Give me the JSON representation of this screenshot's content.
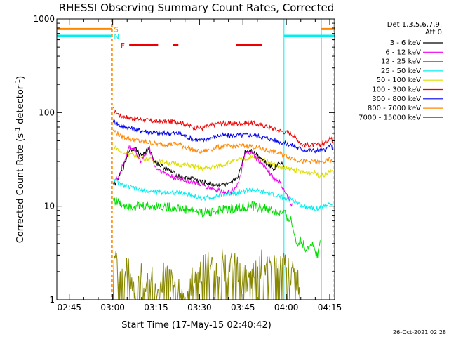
{
  "chart_data": {
    "type": "line",
    "title": "RHESSI Observing Summary Count Rates, Corrected",
    "xlabel": "Start Time (17-May-15 02:40:42)",
    "ylabel": "Corrected Count Rate (s⁻¹ detector⁻¹)",
    "ylabel_parts": [
      "Corrected Count Rate (s",
      "-1",
      " detector",
      "-1",
      ")"
    ],
    "x_unit": "minutes after 02:40:42",
    "xlim": [
      0,
      96
    ],
    "ylim": [
      1,
      1000
    ],
    "yscale": "log",
    "x_ticks": [
      {
        "label": "02:45",
        "x": 4.3
      },
      {
        "label": "03:00",
        "x": 19.3
      },
      {
        "label": "03:15",
        "x": 34.3
      },
      {
        "label": "03:30",
        "x": 49.3
      },
      {
        "label": "03:45",
        "x": 64.3
      },
      {
        "label": "04:00",
        "x": 79.3
      },
      {
        "label": "04:15",
        "x": 94.3
      }
    ],
    "y_ticks": [
      {
        "label": "1",
        "y": 1
      },
      {
        "label": "10",
        "y": 10
      },
      {
        "label": "100",
        "y": 100
      },
      {
        "label": "1000",
        "y": 1000
      }
    ],
    "legend": {
      "placement": "right",
      "header": [
        "Det 1,3,5,6,7,9,",
        "Att 0"
      ],
      "entries": [
        {
          "label": "3 - 6 keV",
          "color": "#000000"
        },
        {
          "label": "6 - 12 keV",
          "color": "#ee00ee"
        },
        {
          "label": "12 - 25 keV",
          "color": "#00dd00"
        },
        {
          "label": "25 - 50 keV",
          "color": "#00eeee"
        },
        {
          "label": "50 - 100 keV",
          "color": "#dddd00"
        },
        {
          "label": "100 - 300 keV",
          "color": "#ee0000"
        },
        {
          "label": "300 - 800 keV",
          "color": "#0000ee"
        },
        {
          "label": "800 - 7000 keV",
          "color": "#ff8800"
        },
        {
          "label": "7000 - 15000 keV",
          "color": "#888800"
        }
      ]
    },
    "flags": {
      "S": {
        "label": "S",
        "color": "#ff8800",
        "y": 780,
        "segments": [
          [
            0,
            19
          ],
          [
            91.5,
            96
          ]
        ]
      },
      "N": {
        "label": "N",
        "color": "#00eeee",
        "y": 660,
        "segments": [
          [
            0,
            19
          ],
          [
            78.5,
            96
          ]
        ]
      },
      "F": {
        "label": "F",
        "color": "#ee0000",
        "y": 530,
        "segments": [
          [
            25,
            35
          ],
          [
            40,
            42
          ],
          [
            62,
            71
          ]
        ]
      }
    },
    "vertical_markers": [
      {
        "x": 0,
        "color": "#00eeee",
        "style": "solid"
      },
      {
        "x": 18.8,
        "color": "#00eeee",
        "style": "dashed"
      },
      {
        "x": 19.2,
        "color": "#ff8800",
        "style": "dashed"
      },
      {
        "x": 78.5,
        "color": "#00eeee",
        "style": "solid"
      },
      {
        "x": 91.4,
        "color": "#ff8800",
        "style": "solid"
      },
      {
        "x": 95.5,
        "color": "#00eeee",
        "style": "dashed"
      }
    ],
    "series": [
      {
        "name": "100 - 300 keV",
        "color": "#ee0000",
        "x": [
          19.5,
          22,
          28,
          35,
          42,
          47,
          50,
          56,
          62,
          67,
          72,
          76,
          79,
          81,
          85,
          89.5,
          90.5,
          93,
          94.3,
          95.3
        ],
        "y": [
          108,
          92,
          85,
          80,
          80,
          70,
          68,
          77,
          76,
          78,
          72,
          65,
          62,
          60,
          45,
          45,
          45,
          48,
          55,
          50
        ]
      },
      {
        "name": "300 - 800 keV",
        "color": "#0000ee",
        "x": [
          19.5,
          22,
          28,
          35,
          42,
          47,
          50,
          56,
          62,
          67,
          72,
          76,
          79,
          81,
          85,
          89.5,
          90.5,
          93,
          94.3,
          95.3
        ],
        "y": [
          82,
          72,
          65,
          60,
          60,
          52,
          50,
          57,
          57,
          58,
          54,
          50,
          47,
          45,
          40,
          39,
          39,
          40,
          45,
          42
        ]
      },
      {
        "name": "800 - 7000 keV",
        "color": "#ff8800",
        "x": [
          19.5,
          22,
          28,
          35,
          42,
          47,
          50,
          56,
          62,
          67,
          72,
          76,
          79,
          81,
          85,
          89.5,
          90.5,
          93,
          94.3,
          95.3
        ],
        "y": [
          65,
          56,
          50,
          46,
          46,
          40,
          38,
          43,
          44,
          44,
          40,
          37,
          35,
          33,
          30,
          30,
          29,
          30,
          32,
          30
        ]
      },
      {
        "name": "50 - 100 keV",
        "color": "#dddd00",
        "x": [
          19.5,
          22,
          28,
          35,
          42,
          47,
          50,
          56,
          62,
          67,
          72,
          76,
          79,
          81,
          85,
          89.5,
          90.5,
          93,
          94.3,
          95.3
        ],
        "y": [
          45,
          38,
          34,
          30,
          28,
          27,
          25,
          27,
          31,
          33,
          31,
          27,
          25,
          25,
          23,
          23,
          21,
          22,
          24,
          23
        ]
      },
      {
        "name": "3 - 6 keV",
        "color": "#000000",
        "x": [
          19.5,
          21,
          23,
          25,
          27,
          29,
          32,
          34,
          36,
          38,
          41,
          44,
          47,
          50,
          55,
          60,
          63,
          65,
          67,
          70,
          73,
          75,
          77,
          78.5
        ],
        "y": [
          17,
          19,
          26,
          40,
          42,
          35,
          40,
          30,
          27,
          25,
          22,
          20,
          20,
          18,
          17,
          17,
          22,
          38,
          40,
          34,
          28,
          25,
          30,
          27
        ]
      },
      {
        "name": "6 - 12 keV",
        "color": "#ee00ee",
        "x": [
          19.5,
          21,
          23,
          25,
          27,
          29,
          32,
          34,
          36,
          38,
          41,
          44,
          47,
          50,
          55,
          60,
          63,
          65,
          67,
          70,
          73,
          75,
          77,
          80,
          81.5
        ],
        "y": [
          18,
          20,
          28,
          43,
          40,
          30,
          42,
          26,
          24,
          22,
          20,
          19,
          18,
          17,
          15,
          14,
          18,
          36,
          38,
          30,
          24,
          20,
          18,
          12,
          10
        ]
      },
      {
        "name": "25 - 50 keV",
        "color": "#00eeee",
        "x": [
          19.5,
          22,
          28,
          35,
          42,
          47,
          50,
          56,
          62,
          67,
          72,
          76,
          79,
          81,
          85,
          89.5,
          90.5,
          93,
          94.3,
          95.3
        ],
        "y": [
          20,
          17,
          15,
          14,
          14,
          13,
          12,
          13,
          14,
          15,
          14,
          13,
          12,
          12,
          10,
          9.5,
          9.5,
          10,
          11,
          10
        ]
      },
      {
        "name": "12 - 25 keV",
        "color": "#00dd00",
        "x": [
          19.5,
          22,
          28,
          35,
          42,
          47,
          50,
          56,
          62,
          67,
          72,
          76,
          79,
          81,
          82,
          83,
          84,
          86,
          88,
          90,
          91
        ],
        "y": [
          12,
          10.5,
          10,
          10,
          9.5,
          9,
          8.5,
          9,
          9.5,
          10,
          9.5,
          8.5,
          8,
          7,
          5,
          4,
          4.5,
          3.5,
          4,
          3,
          4
        ]
      },
      {
        "name": "7000 - 15000 keV",
        "color": "#888800",
        "x": [
          19.5,
          20.5,
          21.5,
          22.5,
          25,
          27,
          29,
          31,
          33,
          35,
          37,
          44,
          48,
          50,
          52,
          55,
          57,
          59,
          61,
          63,
          66,
          69,
          71,
          73,
          75,
          77,
          79,
          81,
          84
        ],
        "y": [
          3,
          2.5,
          2,
          2.5,
          2,
          1,
          2,
          1.5,
          2,
          1,
          2,
          1,
          2,
          2,
          2.5,
          2,
          2.5,
          2,
          2.5,
          2,
          1.5,
          2,
          2.5,
          2,
          2.5,
          2,
          2.5,
          2,
          1.5
        ]
      }
    ],
    "grid": false
  },
  "footer": {
    "timestamp": "26-Oct-2021 02:28"
  }
}
